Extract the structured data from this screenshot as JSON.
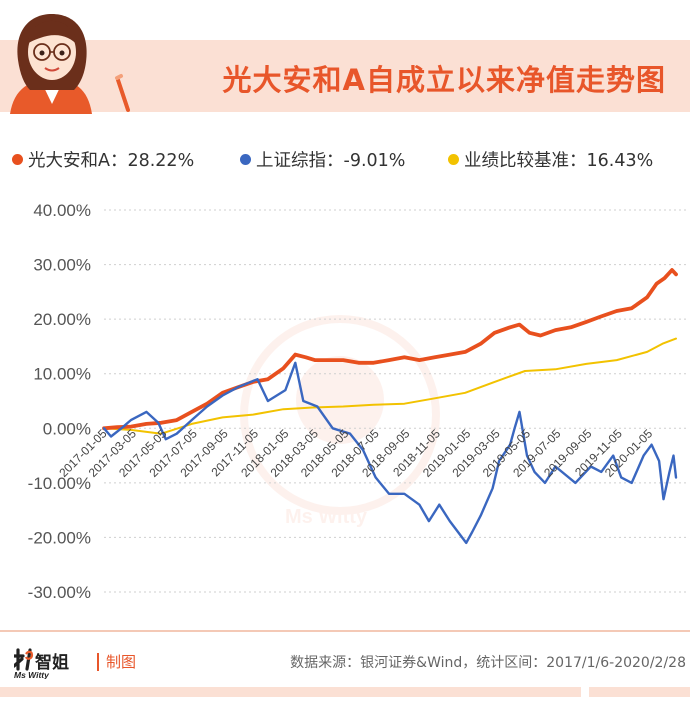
{
  "header": {
    "title": "光大安和A自成立以来净值走势图"
  },
  "legend": [
    {
      "label": "光大安和A：28.22%",
      "color": "#e8501e"
    },
    {
      "label": "上证综指：-9.01%",
      "color": "#3a67c0"
    },
    {
      "label": "业绩比较基准：16.43%",
      "color": "#f2c200"
    }
  ],
  "footer": {
    "maker": "制图",
    "source": "数据来源：银河证券&Wind，统计区间：2017/1/6-2020/2/28",
    "brand_cn": "智姐",
    "brand_en": "Ms Witty",
    "watermark": "Ms Witty"
  },
  "chart_data": {
    "type": "line",
    "title": "",
    "xlabel": "",
    "ylabel": "",
    "ylim": [
      -30,
      40
    ],
    "yticks": [
      "40.00%",
      "30.00%",
      "20.00%",
      "10.00%",
      "0.00%",
      "-10.00%",
      "-20.00%",
      "-30.00%"
    ],
    "ytick_values": [
      40,
      30,
      20,
      10,
      0,
      -10,
      -20,
      -30
    ],
    "xlim": [
      "2017-01-06",
      "2020-02-28"
    ],
    "xticks": [
      "2017-01-05",
      "2017-03-05",
      "2017-05-05",
      "2017-07-05",
      "2017-09-05",
      "2017-11-05",
      "2018-01-05",
      "2018-03-05",
      "2018-05-05",
      "2018-07-05",
      "2018-09-05",
      "2018-11-05",
      "2019-01-05",
      "2019-03-05",
      "2019-05-05",
      "2019-07-05",
      "2019-09-05",
      "2019-11-05",
      "2020-01-05"
    ],
    "grid": true,
    "legend_position": "top",
    "series": [
      {
        "name": "光大安和A",
        "color": "#e8501e",
        "points": [
          [
            "2017-01-06",
            0
          ],
          [
            "2017-02-01",
            0.2
          ],
          [
            "2017-03-01",
            0.3
          ],
          [
            "2017-04-01",
            0.8
          ],
          [
            "2017-05-01",
            1
          ],
          [
            "2017-06-01",
            1.5
          ],
          [
            "2017-07-01",
            3
          ],
          [
            "2017-08-01",
            4.5
          ],
          [
            "2017-09-01",
            6.5
          ],
          [
            "2017-10-01",
            7.5
          ],
          [
            "2017-11-01",
            8.5
          ],
          [
            "2017-12-01",
            9
          ],
          [
            "2018-01-01",
            11
          ],
          [
            "2018-01-25",
            13.5
          ],
          [
            "2018-02-15",
            13
          ],
          [
            "2018-03-05",
            12.5
          ],
          [
            "2018-04-01",
            12.5
          ],
          [
            "2018-05-01",
            12.5
          ],
          [
            "2018-06-01",
            12
          ],
          [
            "2018-07-01",
            12
          ],
          [
            "2018-08-01",
            12.5
          ],
          [
            "2018-09-01",
            13
          ],
          [
            "2018-10-01",
            12.5
          ],
          [
            "2018-11-01",
            13
          ],
          [
            "2018-12-01",
            13.5
          ],
          [
            "2019-01-01",
            14
          ],
          [
            "2019-02-01",
            15.5
          ],
          [
            "2019-03-01",
            17.5
          ],
          [
            "2019-04-01",
            18.5
          ],
          [
            "2019-04-20",
            19
          ],
          [
            "2019-05-10",
            17.5
          ],
          [
            "2019-06-01",
            17
          ],
          [
            "2019-07-01",
            18
          ],
          [
            "2019-08-01",
            18.5
          ],
          [
            "2019-09-01",
            19.5
          ],
          [
            "2019-10-01",
            20.5
          ],
          [
            "2019-11-01",
            21.5
          ],
          [
            "2019-12-01",
            22
          ],
          [
            "2020-01-01",
            24
          ],
          [
            "2020-01-20",
            26.5
          ],
          [
            "2020-02-05",
            27.5
          ],
          [
            "2020-02-20",
            29
          ],
          [
            "2020-02-28",
            28.22
          ]
        ]
      },
      {
        "name": "上证综指",
        "color": "#3a67c0",
        "points": [
          [
            "2017-01-06",
            0
          ],
          [
            "2017-01-20",
            -1.5
          ],
          [
            "2017-02-10",
            0
          ],
          [
            "2017-03-01",
            1.5
          ],
          [
            "2017-04-01",
            3
          ],
          [
            "2017-04-25",
            1
          ],
          [
            "2017-05-10",
            -2
          ],
          [
            "2017-06-01",
            -1
          ],
          [
            "2017-07-01",
            1.5
          ],
          [
            "2017-08-01",
            4
          ],
          [
            "2017-09-01",
            6
          ],
          [
            "2017-10-01",
            7.5
          ],
          [
            "2017-11-10",
            9
          ],
          [
            "2017-12-01",
            5
          ],
          [
            "2018-01-05",
            7
          ],
          [
            "2018-01-25",
            12
          ],
          [
            "2018-02-10",
            5
          ],
          [
            "2018-03-10",
            4
          ],
          [
            "2018-04-10",
            0
          ],
          [
            "2018-05-15",
            -1
          ],
          [
            "2018-06-10",
            -4
          ],
          [
            "2018-07-05",
            -9
          ],
          [
            "2018-08-01",
            -12
          ],
          [
            "2018-09-01",
            -12
          ],
          [
            "2018-10-01",
            -14
          ],
          [
            "2018-10-20",
            -17
          ],
          [
            "2018-11-10",
            -14
          ],
          [
            "2018-12-01",
            -17
          ],
          [
            "2019-01-03",
            -21
          ],
          [
            "2019-01-15",
            -19
          ],
          [
            "2019-02-01",
            -16
          ],
          [
            "2019-02-25",
            -11
          ],
          [
            "2019-03-10",
            -6
          ],
          [
            "2019-04-01",
            -3
          ],
          [
            "2019-04-10",
            0
          ],
          [
            "2019-04-20",
            3
          ],
          [
            "2019-05-05",
            -5
          ],
          [
            "2019-05-20",
            -8
          ],
          [
            "2019-06-10",
            -10
          ],
          [
            "2019-07-01",
            -7
          ],
          [
            "2019-08-10",
            -10
          ],
          [
            "2019-09-10",
            -7
          ],
          [
            "2019-10-01",
            -8
          ],
          [
            "2019-10-25",
            -5
          ],
          [
            "2019-11-10",
            -9
          ],
          [
            "2019-12-01",
            -10
          ],
          [
            "2019-12-25",
            -5
          ],
          [
            "2020-01-10",
            -3
          ],
          [
            "2020-01-25",
            -6
          ],
          [
            "2020-02-03",
            -13
          ],
          [
            "2020-02-15",
            -8
          ],
          [
            "2020-02-23",
            -5
          ],
          [
            "2020-02-28",
            -9.01
          ]
        ]
      },
      {
        "name": "业绩比较基准",
        "color": "#f2c200",
        "points": [
          [
            "2017-01-06",
            0
          ],
          [
            "2017-03-01",
            -0.3
          ],
          [
            "2017-05-01",
            -1
          ],
          [
            "2017-07-01",
            0.8
          ],
          [
            "2017-09-01",
            2
          ],
          [
            "2017-11-01",
            2.5
          ],
          [
            "2018-01-01",
            3.5
          ],
          [
            "2018-03-01",
            3.8
          ],
          [
            "2018-05-01",
            4
          ],
          [
            "2018-07-01",
            4.3
          ],
          [
            "2018-09-01",
            4.5
          ],
          [
            "2018-11-01",
            5.5
          ],
          [
            "2019-01-01",
            6.5
          ],
          [
            "2019-03-01",
            8.5
          ],
          [
            "2019-05-01",
            10.5
          ],
          [
            "2019-07-01",
            10.8
          ],
          [
            "2019-09-01",
            11.8
          ],
          [
            "2019-11-01",
            12.5
          ],
          [
            "2020-01-01",
            14
          ],
          [
            "2020-02-01",
            15.5
          ],
          [
            "2020-02-28",
            16.43
          ]
        ]
      }
    ]
  }
}
